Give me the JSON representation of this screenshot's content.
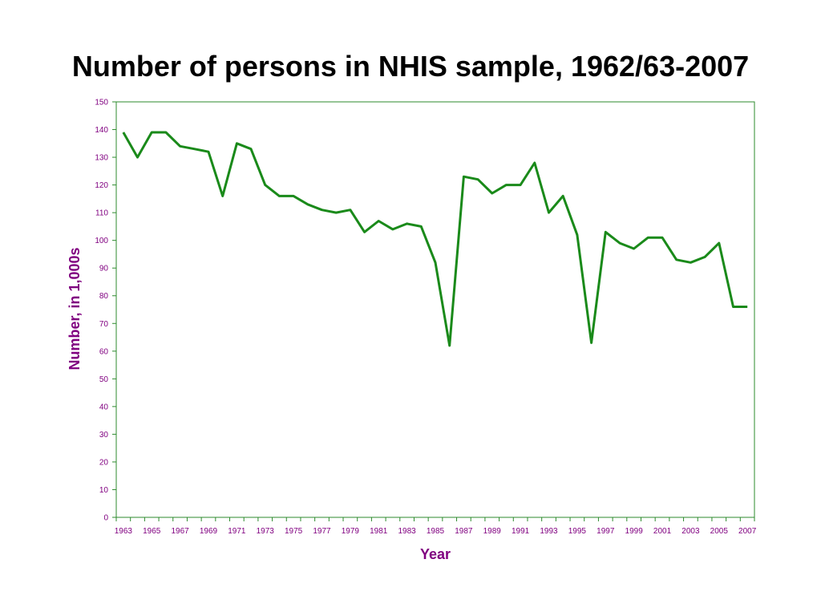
{
  "chart_data": {
    "type": "line",
    "title": "Number of persons in NHIS sample, 1962/63-2007",
    "xlabel": "Year",
    "ylabel": "Number, in 1,000s",
    "ylim": [
      0,
      150
    ],
    "yticks": [
      0,
      10,
      20,
      30,
      40,
      50,
      60,
      70,
      80,
      90,
      100,
      110,
      120,
      130,
      140,
      150
    ],
    "xtick_labels": [
      "1963",
      "1965",
      "1967",
      "1969",
      "1971",
      "1973",
      "1975",
      "1977",
      "1979",
      "1981",
      "1983",
      "1985",
      "1987",
      "1989",
      "1991",
      "1993",
      "1995",
      "1997",
      "1999",
      "2001",
      "2003",
      "2005",
      "2007"
    ],
    "grid": false,
    "legend": "none",
    "colors": {
      "line": "#1a8a1a",
      "axis": "#2e8b2e",
      "text": "#800080",
      "title": "#000000"
    },
    "series": [
      {
        "x": [
          1963,
          1964,
          1965,
          1966,
          1967,
          1968,
          1969,
          1970,
          1971,
          1972,
          1973,
          1974,
          1975,
          1976,
          1977,
          1978,
          1979,
          1980,
          1981,
          1982,
          1983,
          1984,
          1985,
          1986,
          1987,
          1988,
          1989,
          1990,
          1991,
          1992,
          1993,
          1994,
          1995,
          1996,
          1997,
          1998,
          1999,
          2000,
          2001,
          2002,
          2003,
          2004,
          2005,
          2006,
          2007
        ],
        "values": [
          139,
          130,
          139,
          139,
          134,
          133,
          132,
          116,
          135,
          133,
          120,
          116,
          116,
          113,
          111,
          110,
          111,
          103,
          107,
          104,
          106,
          105,
          92,
          62,
          123,
          122,
          117,
          120,
          120,
          128,
          110,
          116,
          102,
          63,
          103,
          99,
          97,
          101,
          101,
          93,
          92,
          94,
          99,
          76,
          76
        ]
      }
    ]
  }
}
